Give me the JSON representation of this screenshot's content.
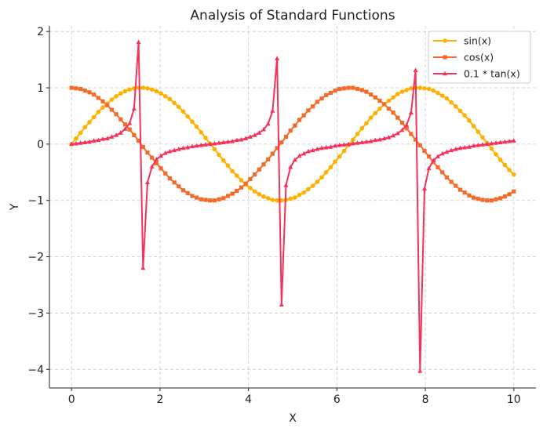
{
  "chart_data": {
    "type": "line",
    "title": "Analysis of Standard Functions",
    "xlabel": "X",
    "ylabel": "Y",
    "xlim": [
      -0.5,
      10.5
    ],
    "ylim": [
      -4.33,
      2.1
    ],
    "xticks": [
      0,
      2,
      4,
      6,
      8,
      10
    ],
    "yticks": [
      -4,
      -3,
      -2,
      -1,
      0,
      1,
      2
    ],
    "xtick_labels": [
      "0",
      "2",
      "4",
      "6",
      "8",
      "10"
    ],
    "ytick_labels": [
      "−4",
      "−3",
      "−2",
      "−1",
      "0",
      "1",
      "2"
    ],
    "grid": true,
    "legend_position": "top-right",
    "x_range": {
      "start": 0,
      "end": 10,
      "count": 100
    },
    "series": [
      {
        "name": "sin(x)",
        "color": "#FFB000",
        "marker": "circle",
        "values": [
          0.0,
          0.1,
          0.2,
          0.3,
          0.39,
          0.48,
          0.57,
          0.65,
          0.72,
          0.79,
          0.85,
          0.9,
          0.94,
          0.97,
          0.99,
          1.0,
          1.0,
          0.99,
          0.97,
          0.94,
          0.9,
          0.85,
          0.8,
          0.73,
          0.66,
          0.58,
          0.49,
          0.4,
          0.31,
          0.21,
          0.11,
          0.01,
          -0.09,
          -0.19,
          -0.29,
          -0.38,
          -0.48,
          -0.56,
          -0.64,
          -0.72,
          -0.78,
          -0.84,
          -0.89,
          -0.93,
          -0.96,
          -0.99,
          -1.0,
          -1.0,
          -0.99,
          -0.97,
          -0.95,
          -0.9,
          -0.86,
          -0.8,
          -0.74,
          -0.67,
          -0.59,
          -0.5,
          -0.41,
          -0.31,
          -0.22,
          -0.12,
          -0.02,
          0.08,
          0.18,
          0.28,
          0.37,
          0.47,
          0.55,
          0.63,
          0.71,
          0.77,
          0.83,
          0.89,
          0.93,
          0.96,
          0.99,
          1.0,
          1.0,
          0.99,
          0.98,
          0.95,
          0.91,
          0.86,
          0.81,
          0.74,
          0.67,
          0.59,
          0.51,
          0.42,
          0.32,
          0.22,
          0.12,
          0.02,
          -0.08,
          -0.18,
          -0.28,
          -0.37,
          -0.46,
          -0.54
        ]
      },
      {
        "name": "cos(x)",
        "color": "#F36B2A",
        "marker": "square",
        "values": [
          1.0,
          0.99,
          0.98,
          0.95,
          0.92,
          0.88,
          0.82,
          0.76,
          0.69,
          0.61,
          0.53,
          0.44,
          0.35,
          0.26,
          0.16,
          0.06,
          -0.05,
          -0.15,
          -0.24,
          -0.34,
          -0.43,
          -0.52,
          -0.61,
          -0.68,
          -0.75,
          -0.82,
          -0.87,
          -0.92,
          -0.95,
          -0.98,
          -0.99,
          -1.0,
          -1.0,
          -0.98,
          -0.96,
          -0.92,
          -0.88,
          -0.83,
          -0.77,
          -0.7,
          -0.62,
          -0.54,
          -0.45,
          -0.36,
          -0.27,
          -0.17,
          -0.07,
          0.03,
          0.13,
          0.24,
          0.33,
          0.43,
          0.51,
          0.6,
          0.67,
          0.75,
          0.81,
          0.87,
          0.91,
          0.95,
          0.98,
          0.99,
          1.0,
          1.0,
          0.98,
          0.96,
          0.93,
          0.88,
          0.83,
          0.77,
          0.71,
          0.63,
          0.56,
          0.47,
          0.38,
          0.28,
          0.18,
          0.08,
          -0.02,
          -0.12,
          -0.22,
          -0.32,
          -0.41,
          -0.5,
          -0.59,
          -0.67,
          -0.74,
          -0.81,
          -0.86,
          -0.91,
          -0.95,
          -0.97,
          -0.99,
          -1.0,
          -1.0,
          -0.98,
          -0.96,
          -0.93,
          -0.89,
          -0.84
        ]
      },
      {
        "name": "0.1 * tan(x)",
        "color": "#F5325A",
        "marker": "triangle",
        "values": [
          0.0,
          0.01,
          0.02,
          0.03,
          0.04,
          0.06,
          0.07,
          0.09,
          0.1,
          0.13,
          0.16,
          0.2,
          0.27,
          0.37,
          0.63,
          1.81,
          -2.2,
          -0.68,
          -0.4,
          -0.27,
          -0.21,
          -0.16,
          -0.13,
          -0.11,
          -0.09,
          -0.07,
          -0.06,
          -0.04,
          -0.03,
          -0.02,
          -0.01,
          0.0,
          0.01,
          0.02,
          0.03,
          0.04,
          0.05,
          0.07,
          0.08,
          0.1,
          0.13,
          0.16,
          0.2,
          0.26,
          0.36,
          0.59,
          1.52,
          -2.85,
          -0.73,
          -0.41,
          -0.28,
          -0.21,
          -0.17,
          -0.13,
          -0.11,
          -0.09,
          -0.07,
          -0.06,
          -0.05,
          -0.03,
          -0.02,
          -0.01,
          0.0,
          0.01,
          0.02,
          0.03,
          0.04,
          0.05,
          0.07,
          0.08,
          0.1,
          0.12,
          0.15,
          0.19,
          0.25,
          0.34,
          0.56,
          1.31,
          -4.03,
          -0.79,
          -0.43,
          -0.29,
          -0.22,
          -0.17,
          -0.14,
          -0.11,
          -0.09,
          -0.07,
          -0.06,
          -0.05,
          -0.03,
          -0.02,
          -0.01,
          0.0,
          0.01,
          0.02,
          0.03,
          0.04,
          0.05,
          0.06
        ]
      }
    ]
  }
}
